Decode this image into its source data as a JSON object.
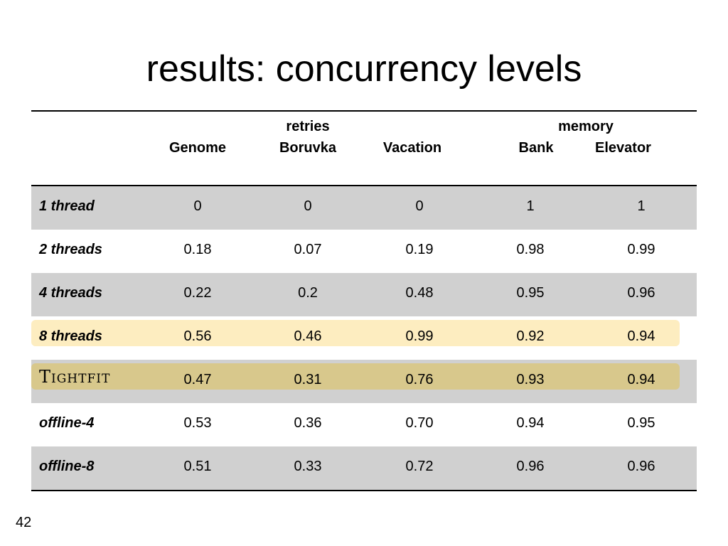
{
  "title": "results: concurrency levels",
  "table": {
    "group_headers": {
      "retries": "retries",
      "memory": "memory"
    },
    "columns": [
      "Genome",
      "Boruvka",
      "Vacation",
      "Bank",
      "Elevator"
    ],
    "rows": [
      {
        "label": "1 thread",
        "values": [
          "0",
          "0",
          "0",
          "1",
          "1"
        ],
        "shaded": true
      },
      {
        "label": "2 threads",
        "values": [
          "0.18",
          "0.07",
          "0.19",
          "0.98",
          "0.99"
        ],
        "shaded": false
      },
      {
        "label": "4 threads",
        "values": [
          "0.22",
          "0.2",
          "0.48",
          "0.95",
          "0.96"
        ],
        "shaded": true
      },
      {
        "label": "8 threads",
        "values": [
          "0.56",
          "0.46",
          "0.99",
          "0.92",
          "0.94"
        ],
        "shaded": false
      },
      {
        "label": "Tightfit",
        "values": [
          "0.47",
          "0.31",
          "0.76",
          "0.93",
          "0.94"
        ],
        "shaded": true
      },
      {
        "label": "offline-4",
        "values": [
          "0.53",
          "0.36",
          "0.70",
          "0.94",
          "0.95"
        ],
        "shaded": false
      },
      {
        "label": "offline-8",
        "values": [
          "0.51",
          "0.33",
          "0.72",
          "0.96",
          "0.96"
        ],
        "shaded": true
      }
    ],
    "highlight_colors": {
      "8 threads": "#fdedc0",
      "Tightfit": "#d8c88c"
    },
    "shade_color": "#d0d0d0"
  },
  "page_number": "42"
}
